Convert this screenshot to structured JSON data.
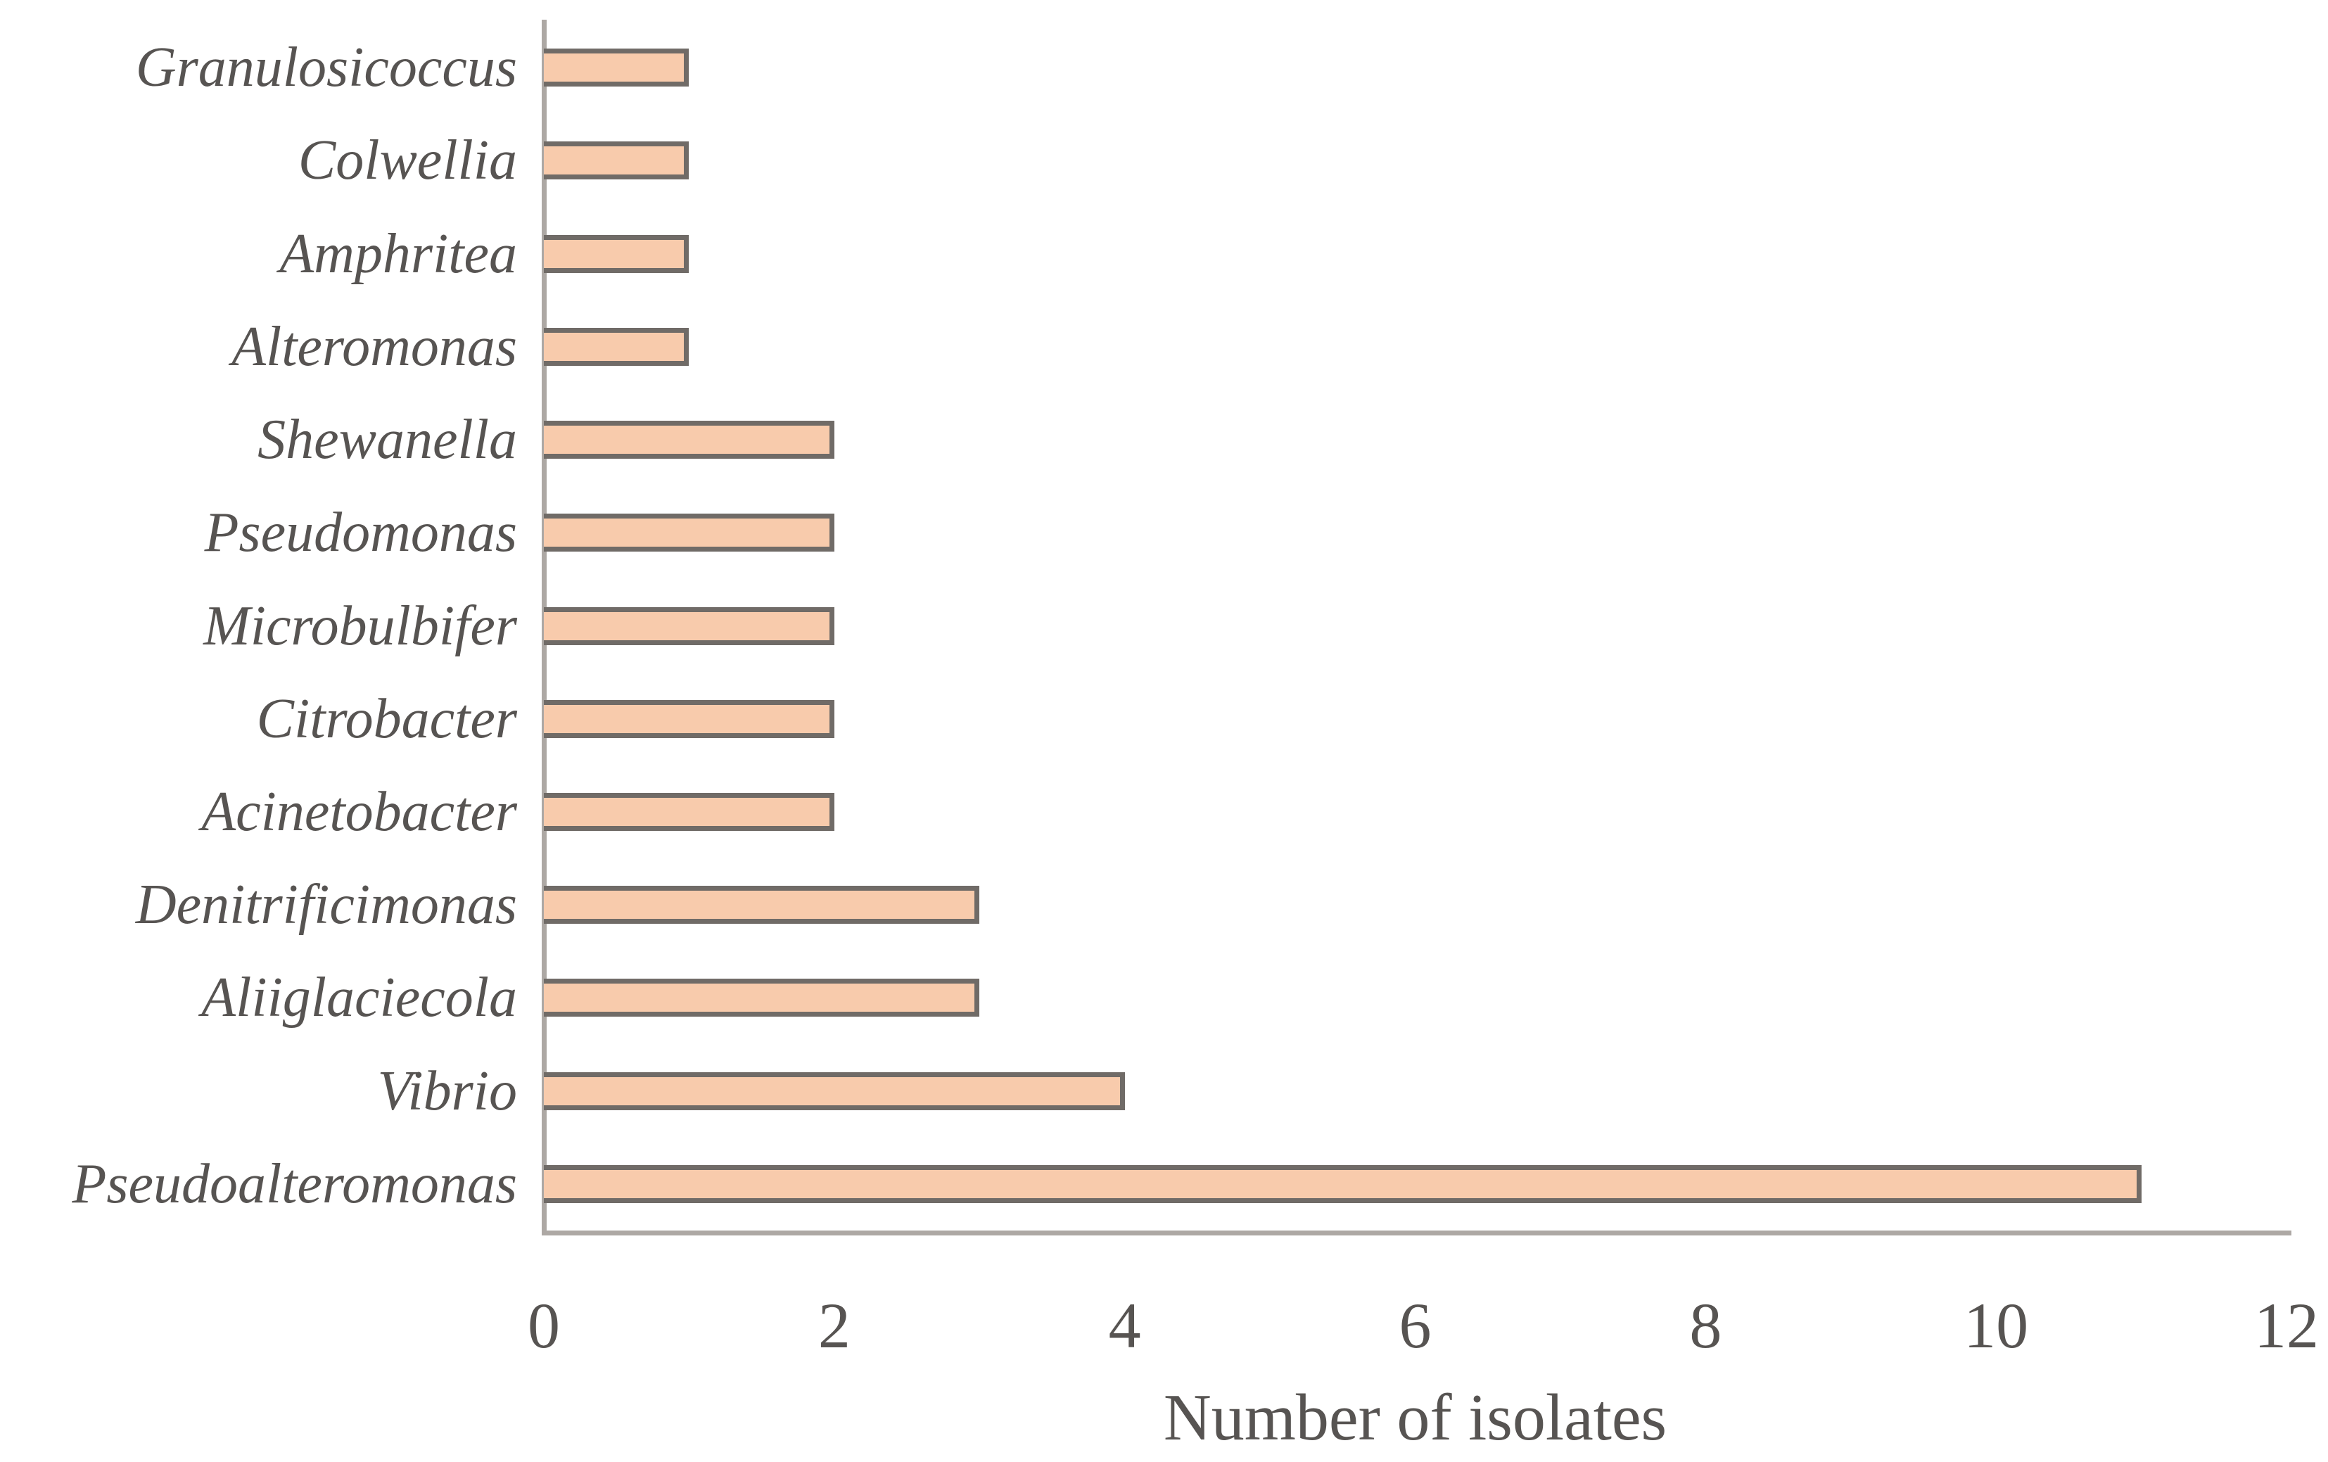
{
  "chart_data": {
    "type": "bar",
    "orientation": "horizontal",
    "title": "",
    "xlabel": "Number of isolates",
    "ylabel": "",
    "categories": [
      "Granulosicoccus",
      "Colwellia",
      "Amphritea",
      "Alteromonas",
      "Shewanella",
      "Pseudomonas",
      "Microbulbifer",
      "Citrobacter",
      "Acinetobacter",
      "Denitrificimonas",
      "Aliiglaciecola",
      "Vibrio",
      "Pseudoalteromonas"
    ],
    "values": [
      1,
      1,
      1,
      1,
      2,
      2,
      2,
      2,
      2,
      3,
      3,
      4,
      11
    ],
    "xlim": [
      0,
      12
    ],
    "xticks": [
      0,
      2,
      4,
      6,
      8,
      10,
      12
    ],
    "grid": false,
    "legend": false,
    "colors": {
      "bar_fill": "#F8CBAC",
      "bar_border": "#706B67",
      "axis_line": "#ADA8A4",
      "text": "#575452",
      "background": "#FFFFFF"
    }
  }
}
